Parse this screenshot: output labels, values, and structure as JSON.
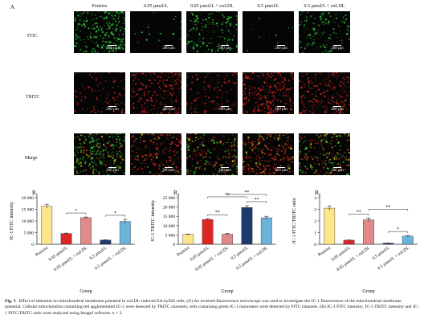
{
  "figure": {
    "panel_a_letter": "A",
    "columns": [
      "Positive",
      "0.05 µmol/L",
      "0.05 µmol/L + oxLDL",
      "0.5 µmol/L",
      "0.5 µmol/L + oxLDL"
    ],
    "rows": [
      "FITC",
      "TRITC",
      "Merge"
    ],
    "scale_bar": "200 µm",
    "channel_colors": {
      "FITC": "#2fd03a",
      "TRITC": "#e0281e",
      "Merge": "#c8c020"
    }
  },
  "chart_data": [
    {
      "type": "bar",
      "panel": "B₁",
      "categories": [
        "Positive",
        "0.05 µmol/L",
        "0.05 µmol/L + oxLDL",
        "0.5 µmol/L",
        "0.5 µmol/L + oxLDL"
      ],
      "values": [
        16300,
        4600,
        11400,
        1800,
        9800
      ],
      "errors": [
        900,
        200,
        300,
        100,
        900
      ],
      "colors": [
        "#fde68a",
        "#dc2626",
        "#e08a8a",
        "#1e3a6e",
        "#6ab4dc"
      ],
      "ylabel": "JC-1 FITC intensity",
      "xlabel": "Group",
      "ylim": [
        0,
        20000
      ],
      "yticks": [
        0,
        5000,
        10000,
        15000,
        20000
      ],
      "ytick_labels": [
        "0",
        "5 000",
        "10 000",
        "15 000",
        "20 000"
      ],
      "significance": [
        {
          "from": 1,
          "to": 2,
          "label": "*"
        },
        {
          "from": 3,
          "to": 4,
          "label": "*"
        }
      ]
    },
    {
      "type": "bar",
      "panel": "B₂",
      "categories": [
        "Positive",
        "0.05 µmol/L",
        "0.05 µmol/L + oxLDL",
        "0.5 µmol/L",
        "0.5 µmol/L + oxLDL"
      ],
      "values": [
        5300,
        13300,
        5400,
        19700,
        14200
      ],
      "errors": [
        200,
        400,
        500,
        1000,
        800
      ],
      "colors": [
        "#fde68a",
        "#dc2626",
        "#e08a8a",
        "#1e3a6e",
        "#6ab4dc"
      ],
      "ylabel": "JC-1 TRITC intensity",
      "xlabel": "Group",
      "ylim": [
        0,
        25000
      ],
      "yticks": [
        0,
        5000,
        10000,
        15000,
        20000,
        25000
      ],
      "ytick_labels": [
        "0",
        "5 000",
        "10 000",
        "15 000",
        "20 000",
        "25 000"
      ],
      "significance": [
        {
          "from": 1,
          "to": 2,
          "label": "**"
        },
        {
          "from": 3,
          "to": 4,
          "label": "**"
        },
        {
          "from": 1,
          "to": 3,
          "label": "**"
        },
        {
          "from": 2,
          "to": 4,
          "label": "**"
        }
      ]
    },
    {
      "type": "bar",
      "panel": "B₃",
      "categories": [
        "Positive",
        "0.05 µmol/L",
        "0.05 µmol/L + oxLDL",
        "0.5 µmol/L",
        "0.5 µmol/L + oxLDL"
      ],
      "values": [
        3.1,
        0.35,
        2.1,
        0.1,
        0.7
      ],
      "errors": [
        0.2,
        0.02,
        0.15,
        0.01,
        0.05
      ],
      "colors": [
        "#fde68a",
        "#dc2626",
        "#e08a8a",
        "#1e3a6e",
        "#6ab4dc"
      ],
      "ylabel": "JC-1 FITC/TRITC ratio",
      "xlabel": "Group",
      "ylim": [
        0,
        4
      ],
      "yticks": [
        0,
        1,
        2,
        3,
        4
      ],
      "ytick_labels": [
        "0",
        "1",
        "2",
        "3",
        "4"
      ],
      "significance": [
        {
          "from": 1,
          "to": 2,
          "label": "**"
        },
        {
          "from": 3,
          "to": 4,
          "label": "*"
        },
        {
          "from": 2,
          "to": 4,
          "label": "**"
        }
      ]
    }
  ],
  "caption": {
    "label": "Fig. 3",
    "text": "Effect of selenium on mitochondrial membrane potential in oxLDL-induced EA.hy926 cells. (A) An inverted fluorescence microscope was used to investigate the JC-1 fluorescence of the mitochondrial membrane potential. Cellular mitochondria containing red agglomerated JC-1 were detected by TRITC channels; cells containing green JC-1 monomers were detected by FITC channels. (B) JC-1 FITC intensity, JC-1 TRITC intensity and JC-1 FITC/TRITC ratio were analyzed using ImageJ software. n = 3."
  }
}
